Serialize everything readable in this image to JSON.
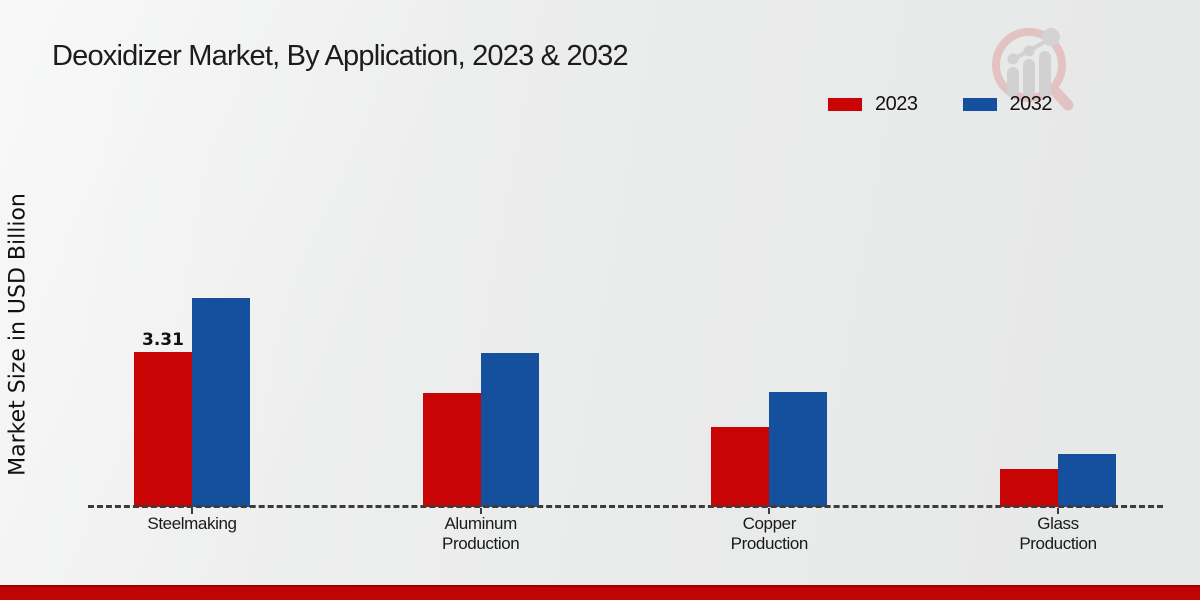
{
  "title": "Deoxidizer Market, By Application, 2023 & 2032",
  "y_axis_label": "Market Size in USD Billion",
  "legend": {
    "position": "top-right",
    "items": [
      {
        "label": "2023",
        "color": "#c80404"
      },
      {
        "label": "2032",
        "color": "#14509e"
      }
    ]
  },
  "icons": {
    "watermark": "magnifier-bar-chart-watermark"
  },
  "colors": {
    "series_2023": "#c80404",
    "series_2032": "#14509e",
    "footer_strip": "#c00404",
    "axis_line": "#3c3c3c",
    "text": "#1a1a1a"
  },
  "chart_data": {
    "type": "bar",
    "title": "Deoxidizer Market, By Application, 2023 & 2032",
    "xlabel": "",
    "ylabel": "Market Size in USD Billion",
    "categories": [
      "Steelmaking",
      "Aluminum Production",
      "Copper Production",
      "Glass Production"
    ],
    "series": [
      {
        "name": "2023",
        "color": "#c80404",
        "values": [
          3.31,
          2.43,
          1.71,
          0.81
        ]
      },
      {
        "name": "2032",
        "color": "#14509e",
        "values": [
          4.46,
          3.29,
          2.46,
          1.13
        ]
      }
    ],
    "ylim": [
      0,
      5
    ],
    "grid": false,
    "axis_style": "dashed-baseline-only",
    "legend_position": "top-right",
    "data_labels": [
      {
        "series": "2023",
        "category": "Steelmaking",
        "text": "3.31"
      }
    ]
  }
}
